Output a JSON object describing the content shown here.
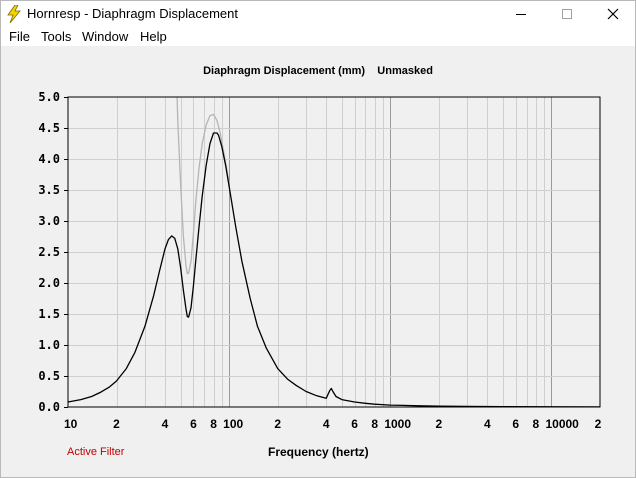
{
  "window": {
    "title": "Hornresp - Diaphragm Displacement",
    "icon": "lightning-bolt-icon",
    "controls": [
      "minimize-icon",
      "maximize-icon",
      "close-icon"
    ]
  },
  "menu": [
    "File",
    "Tools",
    "Window",
    "Help"
  ],
  "chart": {
    "title": "Diaphragm Displacement (mm)    Unmasked",
    "xlabel": "Frequency (hertz)",
    "filter_status": "Active Filter"
  },
  "colors": {
    "primary_series": "#000000",
    "reference_series": "#b5b5b5",
    "grid": "#c8c8c8",
    "status_text": "#c00000"
  },
  "chart_data": {
    "type": "line",
    "title": "Diaphragm Displacement (mm)    Unmasked",
    "xlabel": "Frequency (hertz)",
    "ylabel": "",
    "xscale": "log",
    "xlim": [
      10,
      20000
    ],
    "ylim": [
      0,
      5
    ],
    "grid": true,
    "y_ticks": [
      "5.0",
      "4.5",
      "4.0",
      "3.5",
      "3.0",
      "2.5",
      "2.0",
      "1.5",
      "1.0",
      "0.5",
      "0.0"
    ],
    "x_ticks": [
      {
        "v": 10,
        "t": "10"
      },
      {
        "v": 20,
        "t": "2"
      },
      {
        "v": 40,
        "t": "4"
      },
      {
        "v": 60,
        "t": "6"
      },
      {
        "v": 80,
        "t": "8"
      },
      {
        "v": 100,
        "t": "100"
      },
      {
        "v": 200,
        "t": "2"
      },
      {
        "v": 400,
        "t": "4"
      },
      {
        "v": 600,
        "t": "6"
      },
      {
        "v": 800,
        "t": "8"
      },
      {
        "v": 1000,
        "t": "1000"
      },
      {
        "v": 2000,
        "t": "2"
      },
      {
        "v": 4000,
        "t": "4"
      },
      {
        "v": 6000,
        "t": "6"
      },
      {
        "v": 8000,
        "t": "8"
      },
      {
        "v": 10000,
        "t": "10000"
      },
      {
        "v": 20000,
        "t": "2"
      }
    ],
    "series": [
      {
        "color": "#000000",
        "x": [
          10,
          12,
          14,
          16,
          18,
          20,
          23,
          26,
          30,
          34,
          37,
          40,
          42,
          44,
          46,
          48,
          50,
          52,
          54,
          55,
          56,
          58,
          60,
          62,
          65,
          68,
          72,
          76,
          80,
          84,
          86,
          90,
          95,
          100,
          110,
          120,
          135,
          150,
          170,
          200,
          230,
          260,
          300,
          350,
          400,
          420,
          430,
          440,
          460,
          500,
          600,
          700,
          800,
          1000,
          1200,
          1500,
          2000,
          3000,
          5000,
          10000,
          20000
        ],
        "y": [
          0.08,
          0.12,
          0.17,
          0.24,
          0.32,
          0.42,
          0.62,
          0.88,
          1.3,
          1.8,
          2.2,
          2.55,
          2.7,
          2.76,
          2.72,
          2.55,
          2.25,
          1.88,
          1.58,
          1.46,
          1.45,
          1.6,
          1.95,
          2.35,
          2.9,
          3.4,
          3.9,
          4.25,
          4.42,
          4.42,
          4.38,
          4.2,
          3.9,
          3.55,
          2.9,
          2.35,
          1.75,
          1.3,
          0.95,
          0.62,
          0.45,
          0.35,
          0.25,
          0.18,
          0.14,
          0.26,
          0.3,
          0.25,
          0.17,
          0.12,
          0.08,
          0.06,
          0.045,
          0.03,
          0.025,
          0.02,
          0.015,
          0.01,
          0.006,
          0.003,
          0.002
        ]
      },
      {
        "color": "#b5b5b5",
        "x": [
          47.5,
          48,
          50,
          52,
          54,
          55,
          56,
          58,
          60,
          62,
          65,
          68,
          72,
          76,
          80,
          84,
          88,
          92,
          96,
          100
        ],
        "y": [
          5.0,
          4.6,
          3.6,
          2.75,
          2.28,
          2.15,
          2.16,
          2.35,
          2.8,
          3.3,
          3.85,
          4.25,
          4.55,
          4.7,
          4.72,
          4.62,
          4.42,
          4.15,
          3.88,
          3.6
        ]
      }
    ]
  }
}
